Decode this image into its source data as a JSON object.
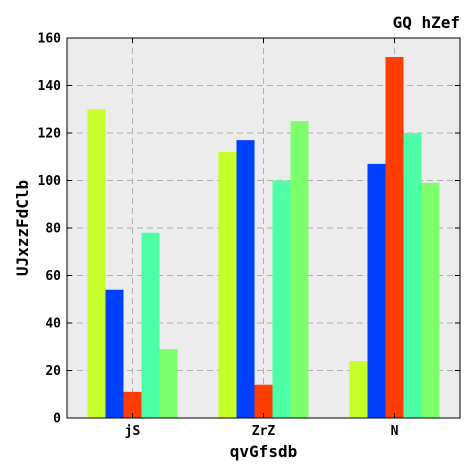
{
  "chart_data": {
    "type": "bar",
    "title": "GQ  hZef",
    "xlabel": "qvGfsdb",
    "ylabel": "UJxzzFdClb",
    "categories": [
      "jS",
      "ZrZ",
      "N"
    ],
    "ylim": [
      0,
      160
    ],
    "yticks": [
      0,
      20,
      40,
      60,
      80,
      100,
      120,
      140,
      160
    ],
    "grid": true,
    "series": [
      {
        "color": "#c6ff2a",
        "values": [
          130,
          112,
          24
        ]
      },
      {
        "color": "#0040ff",
        "values": [
          54,
          117,
          107
        ]
      },
      {
        "color": "#ff3d00",
        "values": [
          11,
          14,
          152
        ]
      },
      {
        "color": "#4dffa6",
        "values": [
          78,
          100,
          120
        ]
      },
      {
        "color": "#7dff6e",
        "values": [
          29,
          125,
          99
        ]
      }
    ]
  }
}
